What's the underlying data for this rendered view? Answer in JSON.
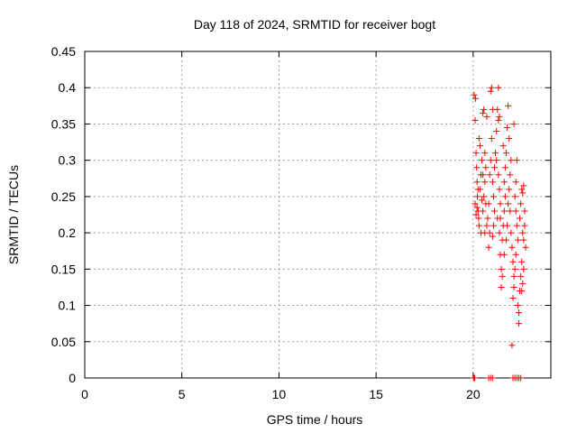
{
  "chart_data": {
    "type": "scatter",
    "title": "Day 118 of 2024, SRMTID for receiver bogt",
    "xlabel": "GPS time / hours",
    "ylabel": "SRMTID / TECUs",
    "xlim": [
      0,
      24
    ],
    "ylim": [
      0,
      0.45
    ],
    "xticks": [
      "0",
      "5",
      "10",
      "15",
      "20"
    ],
    "yticks": [
      "0",
      "0.05",
      "0.1",
      "0.15",
      "0.2",
      "0.25",
      "0.3",
      "0.35",
      "0.4",
      "0.45"
    ],
    "grid": true,
    "marker": "+",
    "color": "#ff0000",
    "series": [
      {
        "name": "SRMTID",
        "points": [
          [
            20.02,
            0.0
          ],
          [
            20.05,
            0.0
          ],
          [
            20.08,
            0.0
          ],
          [
            20.8,
            0.0
          ],
          [
            20.9,
            0.0
          ],
          [
            21.0,
            0.0
          ],
          [
            22.05,
            0.0
          ],
          [
            22.15,
            0.0
          ],
          [
            22.25,
            0.0
          ],
          [
            22.35,
            0.0
          ],
          [
            22.45,
            0.0
          ],
          [
            20.05,
            0.39
          ],
          [
            20.1,
            0.355
          ],
          [
            20.12,
            0.385
          ],
          [
            20.15,
            0.31
          ],
          [
            20.18,
            0.29
          ],
          [
            20.2,
            0.27
          ],
          [
            20.22,
            0.25
          ],
          [
            20.25,
            0.23
          ],
          [
            20.28,
            0.22
          ],
          [
            20.1,
            0.24
          ],
          [
            20.15,
            0.225
          ],
          [
            20.2,
            0.235
          ],
          [
            20.3,
            0.21
          ],
          [
            20.35,
            0.26
          ],
          [
            20.4,
            0.28
          ],
          [
            20.45,
            0.3
          ],
          [
            20.3,
            0.33
          ],
          [
            20.35,
            0.32
          ],
          [
            20.45,
            0.245
          ],
          [
            20.5,
            0.23
          ],
          [
            20.55,
            0.25
          ],
          [
            20.5,
            0.365
          ],
          [
            20.55,
            0.37
          ],
          [
            20.6,
            0.27
          ],
          [
            20.65,
            0.29
          ],
          [
            20.6,
            0.2
          ],
          [
            20.7,
            0.21
          ],
          [
            20.75,
            0.22
          ],
          [
            20.8,
            0.24
          ],
          [
            20.85,
            0.2
          ],
          [
            20.9,
            0.395
          ],
          [
            20.95,
            0.4
          ],
          [
            20.85,
            0.28
          ],
          [
            20.9,
            0.3
          ],
          [
            20.95,
            0.33
          ],
          [
            21.0,
            0.27
          ],
          [
            21.05,
            0.25
          ],
          [
            21.1,
            0.23
          ],
          [
            21.0,
            0.195
          ],
          [
            21.05,
            0.21
          ],
          [
            21.15,
            0.31
          ],
          [
            21.2,
            0.34
          ],
          [
            21.25,
            0.37
          ],
          [
            21.3,
            0.4
          ],
          [
            21.2,
            0.3
          ],
          [
            21.3,
            0.28
          ],
          [
            21.35,
            0.26
          ],
          [
            21.4,
            0.24
          ],
          [
            21.25,
            0.22
          ],
          [
            21.35,
            0.2
          ],
          [
            21.3,
            0.355
          ],
          [
            21.35,
            0.36
          ],
          [
            21.4,
            0.17
          ],
          [
            21.45,
            0.15
          ],
          [
            21.5,
            0.14
          ],
          [
            21.45,
            0.125
          ],
          [
            21.5,
            0.19
          ],
          [
            21.55,
            0.21
          ],
          [
            21.6,
            0.23
          ],
          [
            21.65,
            0.25
          ],
          [
            21.6,
            0.27
          ],
          [
            21.65,
            0.29
          ],
          [
            21.7,
            0.31
          ],
          [
            21.75,
            0.345
          ],
          [
            21.8,
            0.375
          ],
          [
            21.85,
            0.33
          ],
          [
            21.7,
            0.19
          ],
          [
            21.75,
            0.21
          ],
          [
            21.8,
            0.24
          ],
          [
            21.85,
            0.26
          ],
          [
            21.9,
            0.28
          ],
          [
            21.95,
            0.2
          ],
          [
            22.0,
            0.18
          ],
          [
            22.05,
            0.16
          ],
          [
            22.1,
            0.14
          ],
          [
            22.0,
            0.045
          ],
          [
            22.05,
            0.11
          ],
          [
            22.1,
            0.125
          ],
          [
            22.15,
            0.15
          ],
          [
            22.2,
            0.17
          ],
          [
            22.15,
            0.25
          ],
          [
            22.2,
            0.27
          ],
          [
            22.25,
            0.3
          ],
          [
            22.1,
            0.35
          ],
          [
            22.3,
            0.1
          ],
          [
            22.35,
            0.09
          ],
          [
            22.35,
            0.075
          ],
          [
            22.4,
            0.12
          ],
          [
            22.45,
            0.14
          ],
          [
            22.5,
            0.16
          ],
          [
            22.4,
            0.22
          ],
          [
            22.45,
            0.24
          ],
          [
            22.5,
            0.26
          ],
          [
            22.55,
            0.255
          ],
          [
            22.6,
            0.265
          ],
          [
            22.55,
            0.2
          ],
          [
            22.6,
            0.19
          ],
          [
            22.65,
            0.21
          ],
          [
            22.65,
            0.23
          ],
          [
            22.7,
            0.18
          ],
          [
            22.55,
            0.13
          ],
          [
            22.6,
            0.15
          ],
          [
            20.4,
            0.2
          ],
          [
            20.6,
            0.31
          ],
          [
            20.7,
            0.36
          ],
          [
            20.8,
            0.18
          ],
          [
            21.1,
            0.29
          ],
          [
            21.4,
            0.22
          ],
          [
            21.55,
            0.32
          ],
          [
            21.9,
            0.23
          ],
          [
            22.25,
            0.21
          ],
          [
            22.3,
            0.19
          ],
          [
            20.25,
            0.26
          ],
          [
            20.65,
            0.24
          ],
          [
            21.0,
            0.37
          ],
          [
            21.6,
            0.17
          ],
          [
            21.95,
            0.3
          ],
          [
            22.2,
            0.23
          ],
          [
            22.5,
            0.12
          ],
          [
            20.5,
            0.28
          ]
        ]
      }
    ]
  }
}
